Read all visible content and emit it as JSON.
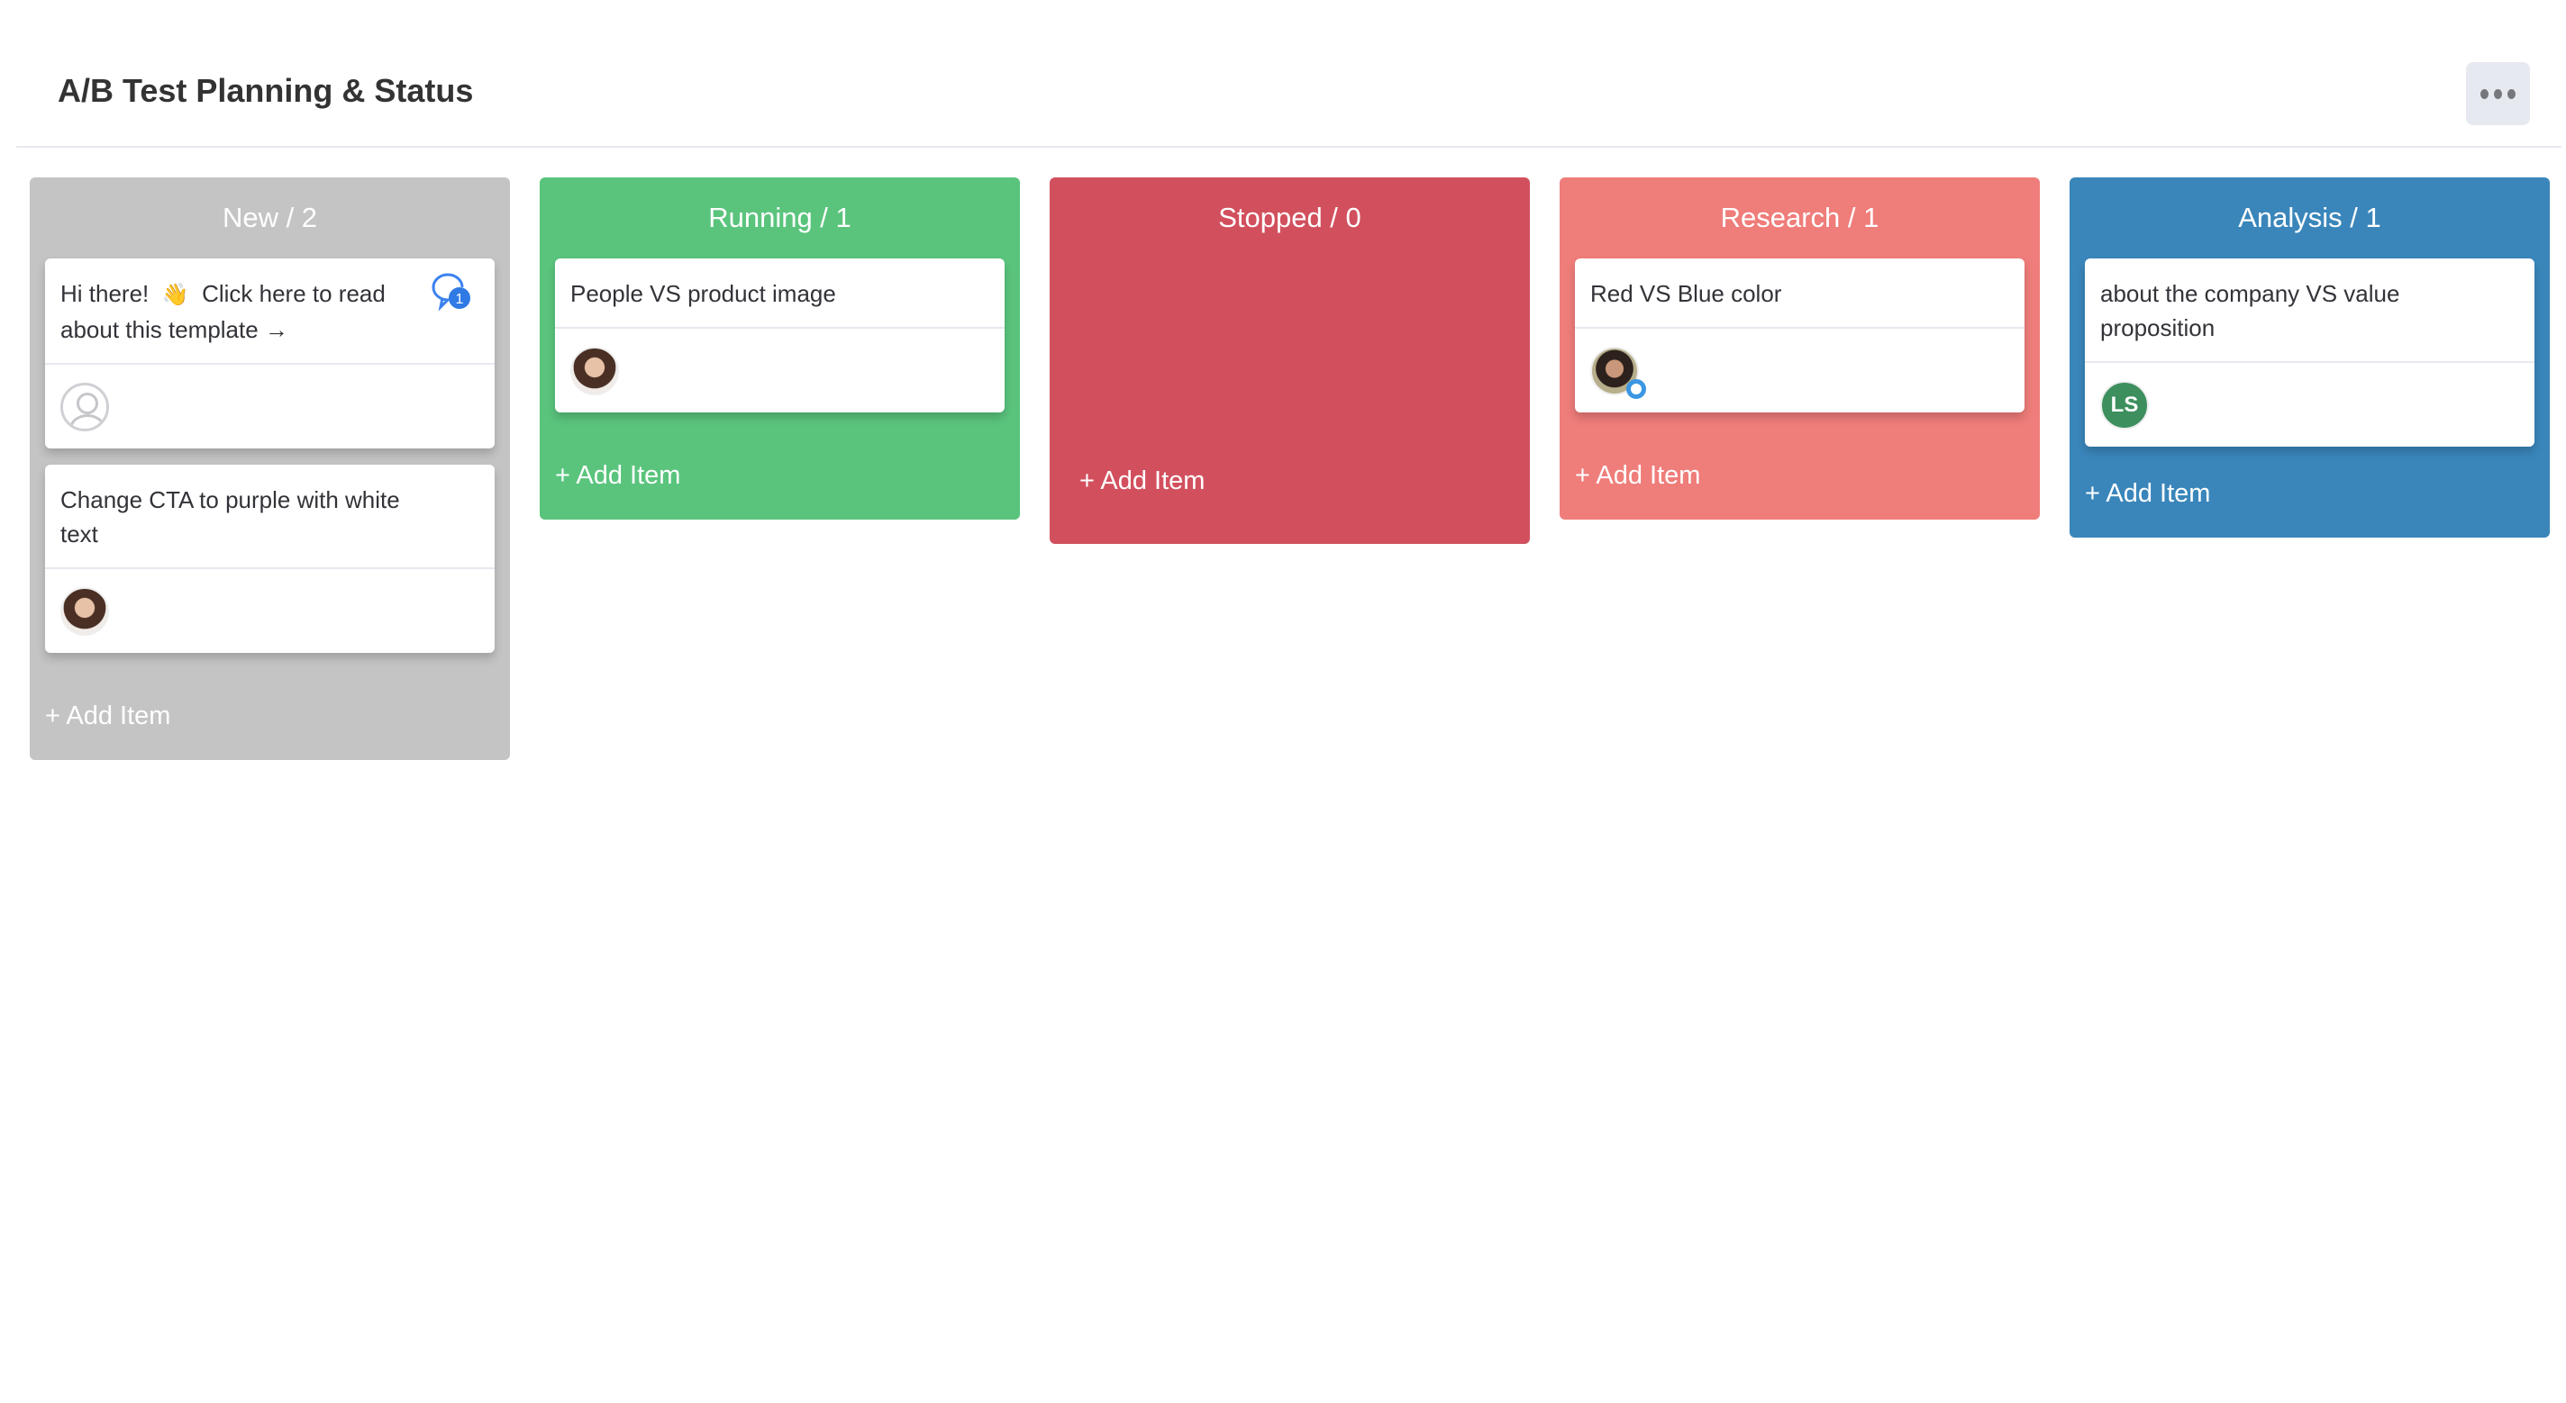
{
  "header": {
    "title": "A/B Test Planning & Status",
    "more_icon": "more-horizontal-icon"
  },
  "columns": [
    {
      "title": "New / 2",
      "color": "#c4c4c4",
      "add_label": "+ Add Item",
      "cards": [
        {
          "text_a": "Hi there!",
          "emoji": "👋",
          "text_b": "Click here to read about this template →",
          "comment_count": "1",
          "avatar": "empty-user"
        },
        {
          "text": "Change CTA to purple with white text",
          "avatar": "photo"
        }
      ]
    },
    {
      "title": "Running / 1",
      "color": "#5ac47d",
      "add_label": "+ Add Item",
      "cards": [
        {
          "text": "People VS product image",
          "avatar": "photo"
        }
      ]
    },
    {
      "title": "Stopped / 0",
      "color": "#d2505e",
      "add_label": "+ Add Item",
      "cards": []
    },
    {
      "title": "Research / 1",
      "color": "#ef7d7a",
      "add_label": "+ Add Item",
      "cards": [
        {
          "text": "Red VS Blue color",
          "avatar": "photo-with-badge"
        }
      ]
    },
    {
      "title": "Analysis / 1",
      "color": "#3a86bb",
      "add_label": "+ Add Item",
      "cards": [
        {
          "text": "about the company VS value proposition",
          "avatar_initials": "LS",
          "avatar_color": "#3d8f5e"
        }
      ]
    }
  ]
}
